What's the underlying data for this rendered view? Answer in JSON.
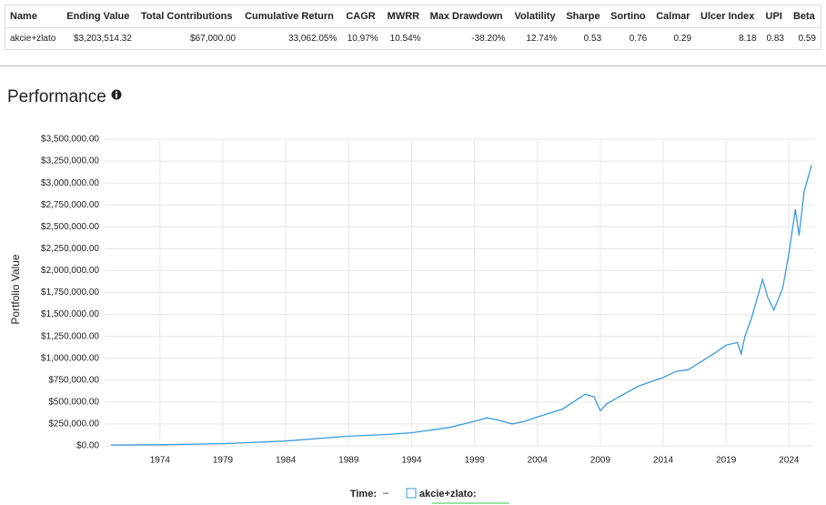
{
  "table": {
    "columns": [
      "Name",
      "Ending Value",
      "Total Contributions",
      "Cumulative Return",
      "CAGR",
      "MWRR",
      "Max Drawdown",
      "Volatility",
      "Sharpe",
      "Sortino",
      "Calmar",
      "Ulcer Index",
      "UPI",
      "Beta"
    ],
    "rows": [
      [
        "akcie+zlato",
        "$3,203,514.32",
        "$67,000.00",
        "33,062.05%",
        "10.97%",
        "10.54%",
        "-38.20%",
        "12.74%",
        "0.53",
        "0.76",
        "0.29",
        "8.18",
        "0.83",
        "0.59"
      ]
    ]
  },
  "header": {
    "title": "Performance"
  },
  "chart_data": {
    "type": "line",
    "y_label": "Portfolio Value",
    "legend_title": "Time:",
    "legend_time": "–",
    "x": [
      1970.1,
      1974,
      1979,
      1984,
      1988,
      1989,
      1992,
      1994,
      1997,
      1999,
      2000,
      2001,
      2002,
      2003,
      2004,
      2006,
      2007.8,
      2008.5,
      2009.0,
      2009.5,
      2011,
      2012,
      2014,
      2015,
      2016,
      2018,
      2019,
      2019.9,
      2020.2,
      2020.5,
      2021,
      2021.9,
      2022.3,
      2022.8,
      2023.5,
      2024,
      2024.5,
      2024.8,
      2025.2,
      2025.8
    ],
    "series": [
      {
        "name": "akcie+zlato:",
        "color": "#3a9ad9",
        "values": [
          10000,
          12000,
          25000,
          55000,
          100000,
          110000,
          130000,
          150000,
          210000,
          280000,
          320000,
          290000,
          250000,
          280000,
          330000,
          420000,
          590000,
          560000,
          400000,
          480000,
          600000,
          680000,
          780000,
          850000,
          870000,
          1050000,
          1150000,
          1180000,
          1050000,
          1250000,
          1450000,
          1900000,
          1700000,
          1550000,
          1800000,
          2200000,
          2700000,
          2400000,
          2900000,
          3203514
        ]
      }
    ],
    "xlim": [
      1969.6,
      2026
    ],
    "xticks": [
      1974,
      1979,
      1984,
      1989,
      1994,
      1999,
      2004,
      2009,
      2014,
      2019,
      2024
    ],
    "ylim": [
      0,
      3500000
    ],
    "yticks": [
      {
        "value": 0,
        "label": "$0.00"
      },
      {
        "value": 250000,
        "label": "$250,000.00"
      },
      {
        "value": 500000,
        "label": "$500,000.00"
      },
      {
        "value": 750000,
        "label": "$750,000.00"
      },
      {
        "value": 1000000,
        "label": "$1,000,000.00"
      },
      {
        "value": 1250000,
        "label": "$1,250,000.00"
      },
      {
        "value": 1500000,
        "label": "$1,500,000.00"
      },
      {
        "value": 1750000,
        "label": "$1,750,000.00"
      },
      {
        "value": 2000000,
        "label": "$2,000,000.00"
      },
      {
        "value": 2250000,
        "label": "$2,250,000.00"
      },
      {
        "value": 2500000,
        "label": "$2,500,000.00"
      },
      {
        "value": 2750000,
        "label": "$2,750,000.00"
      },
      {
        "value": 3000000,
        "label": "$3,000,000.00"
      },
      {
        "value": 3250000,
        "label": "$3,250,000.00"
      },
      {
        "value": 3500000,
        "label": "$3,500,000.00"
      }
    ],
    "grid": true
  }
}
